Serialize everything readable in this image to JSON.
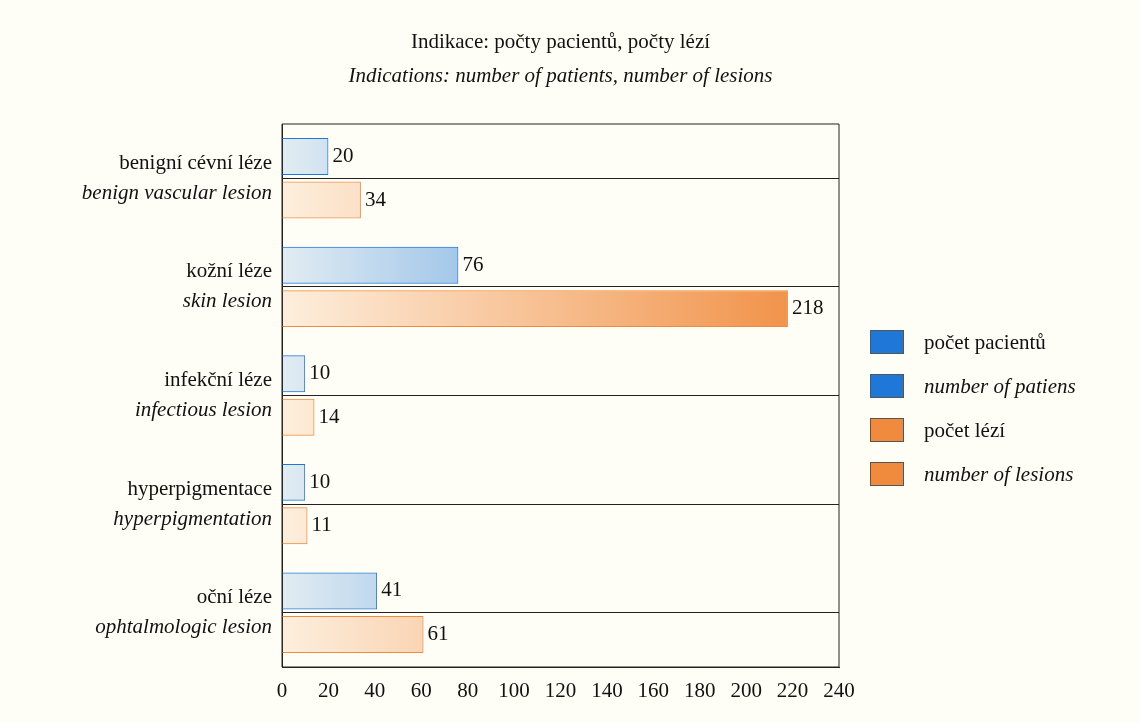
{
  "chart_data": {
    "type": "bar",
    "orientation": "horizontal",
    "title": "Indikace: počty pacientů, počty lézí",
    "subtitle": "Indications: number of patients, number of lesions",
    "categories": [
      "benigní cévní léze\nbenign vascular lesion",
      "kožní léze\nskin lesion",
      "infekční léze\ninfectious lesion",
      "hyperpigmentace\nhyperpigmentation",
      "oční léze\nophtalmologic lesion"
    ],
    "series": [
      {
        "name": "počet pacientů\nnumber of patiens",
        "color": "#1f78d8",
        "values": [
          20,
          76,
          10,
          10,
          41
        ]
      },
      {
        "name": "počet lézí\nnumber of lesions",
        "color": "#f08a3c",
        "values": [
          34,
          218,
          14,
          11,
          61
        ]
      }
    ],
    "xlim": [
      0,
      240
    ],
    "xticks": [
      0,
      20,
      40,
      60,
      80,
      100,
      120,
      140,
      160,
      180,
      200,
      220,
      240
    ],
    "grid": "y",
    "legend": "right",
    "data_labels": true
  }
}
